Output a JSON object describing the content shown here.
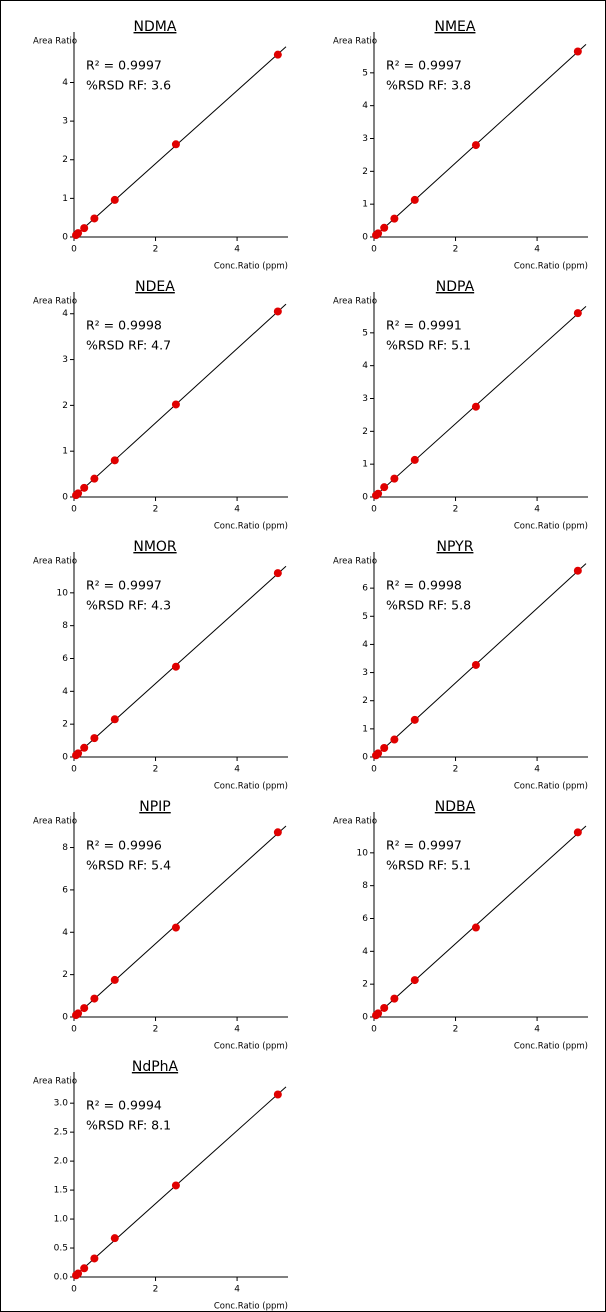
{
  "chart_data": [
    {
      "type": "scatter",
      "title": "NDMA",
      "ylabel": "Area Ratio",
      "xlabel": "Conc.Ratio (ppm)",
      "annotations": [
        "R² = 0.9997",
        "%RSD RF: 3.6"
      ],
      "x": [
        0.05,
        0.1,
        0.25,
        0.5,
        1,
        2.5,
        5
      ],
      "values": [
        0.05,
        0.1,
        0.23,
        0.48,
        0.96,
        2.4,
        4.72
      ],
      "color": "#e00000",
      "xlim": [
        0,
        5.2
      ],
      "xticks": [
        0,
        2,
        4
      ],
      "ylim": [
        0,
        5.1
      ],
      "yticks": [
        0,
        1,
        2,
        3,
        4
      ]
    },
    {
      "type": "scatter",
      "title": "NMEA",
      "ylabel": "Area Ratio",
      "xlabel": "Conc.Ratio (ppm)",
      "annotations": [
        "R² = 0.9997",
        "%RSD RF: 3.8"
      ],
      "x": [
        0.05,
        0.1,
        0.25,
        0.5,
        1,
        2.5,
        5
      ],
      "values": [
        0.06,
        0.11,
        0.28,
        0.56,
        1.13,
        2.8,
        5.65
      ],
      "color": "#e00000",
      "xlim": [
        0,
        5.2
      ],
      "xticks": [
        0,
        2,
        4
      ],
      "ylim": [
        0,
        6.0
      ],
      "yticks": [
        0,
        1,
        2,
        3,
        4,
        5
      ]
    },
    {
      "type": "scatter",
      "title": "NDEA",
      "ylabel": "Area Ratio",
      "xlabel": "Conc.Ratio (ppm)",
      "annotations": [
        "R² = 0.9998",
        "%RSD RF: 4.7"
      ],
      "x": [
        0.05,
        0.1,
        0.25,
        0.5,
        1,
        2.5,
        5
      ],
      "values": [
        0.04,
        0.08,
        0.2,
        0.4,
        0.8,
        2.02,
        4.05
      ],
      "color": "#e00000",
      "xlim": [
        0,
        5.2
      ],
      "xticks": [
        0,
        2,
        4
      ],
      "ylim": [
        0,
        4.3
      ],
      "yticks": [
        0,
        1,
        2,
        3,
        4
      ]
    },
    {
      "type": "scatter",
      "title": "NDPA",
      "ylabel": "Area Ratio",
      "xlabel": "Conc.Ratio (ppm)",
      "annotations": [
        "R² = 0.9991",
        "%RSD RF: 5.1"
      ],
      "x": [
        0.05,
        0.1,
        0.25,
        0.5,
        1,
        2.5,
        5
      ],
      "values": [
        0.05,
        0.1,
        0.3,
        0.56,
        1.13,
        2.75,
        5.6
      ],
      "color": "#e00000",
      "xlim": [
        0,
        5.2
      ],
      "xticks": [
        0,
        2,
        4
      ],
      "ylim": [
        0,
        6.0
      ],
      "yticks": [
        0,
        1,
        2,
        3,
        4,
        5
      ]
    },
    {
      "type": "scatter",
      "title": "NMOR",
      "ylabel": "Area Ratio",
      "xlabel": "Conc.Ratio (ppm)",
      "annotations": [
        "R² = 0.9997",
        "%RSD RF: 4.3"
      ],
      "x": [
        0.05,
        0.1,
        0.25,
        0.5,
        1,
        2.5,
        5
      ],
      "values": [
        0.11,
        0.22,
        0.56,
        1.15,
        2.3,
        5.5,
        11.2
      ],
      "color": "#e00000",
      "xlim": [
        0,
        5.2
      ],
      "xticks": [
        0,
        2,
        4
      ],
      "ylim": [
        0,
        12
      ],
      "yticks": [
        0,
        2,
        4,
        6,
        8,
        10
      ]
    },
    {
      "type": "scatter",
      "title": "NPYR",
      "ylabel": "Area Ratio",
      "xlabel": "Conc.Ratio (ppm)",
      "annotations": [
        "R² = 0.9998",
        "%RSD RF: 5.8"
      ],
      "x": [
        0.05,
        0.1,
        0.25,
        0.5,
        1,
        2.5,
        5
      ],
      "values": [
        0.06,
        0.13,
        0.32,
        0.62,
        1.32,
        3.27,
        6.62
      ],
      "color": "#e00000",
      "xlim": [
        0,
        5.2
      ],
      "xticks": [
        0,
        2,
        4
      ],
      "ylim": [
        0,
        7.0
      ],
      "yticks": [
        0,
        1,
        2,
        3,
        4,
        5,
        6
      ]
    },
    {
      "type": "scatter",
      "title": "NPIP",
      "ylabel": "Area Ratio",
      "xlabel": "Conc.Ratio (ppm)",
      "annotations": [
        "R² = 0.9996",
        "%RSD RF: 5.4"
      ],
      "x": [
        0.05,
        0.1,
        0.25,
        0.5,
        1,
        2.5,
        5
      ],
      "values": [
        0.09,
        0.17,
        0.42,
        0.87,
        1.75,
        4.22,
        8.72
      ],
      "color": "#e00000",
      "xlim": [
        0,
        5.2
      ],
      "xticks": [
        0,
        2,
        4
      ],
      "ylim": [
        0,
        9.3
      ],
      "yticks": [
        0,
        2,
        4,
        6,
        8
      ]
    },
    {
      "type": "scatter",
      "title": "NDBA",
      "ylabel": "Area Ratio",
      "xlabel": "Conc.Ratio (ppm)",
      "annotations": [
        "R² = 0.9997",
        "%RSD RF: 5.1"
      ],
      "x": [
        0.05,
        0.1,
        0.25,
        0.5,
        1,
        2.5,
        5
      ],
      "values": [
        0.11,
        0.22,
        0.55,
        1.12,
        2.25,
        5.45,
        11.25
      ],
      "color": "#e00000",
      "xlim": [
        0,
        5.2
      ],
      "xticks": [
        0,
        2,
        4
      ],
      "ylim": [
        0,
        12
      ],
      "yticks": [
        0,
        2,
        4,
        6,
        8,
        10
      ]
    },
    {
      "type": "scatter",
      "title": "NdPhA",
      "ylabel": "Area Ratio",
      "xlabel": "Conc.Ratio (ppm)",
      "annotations": [
        "R² = 0.9994",
        "%RSD RF: 8.1"
      ],
      "x": [
        0.05,
        0.1,
        0.25,
        0.5,
        1,
        2.5,
        5
      ],
      "values": [
        0.03,
        0.06,
        0.15,
        0.32,
        0.67,
        1.58,
        3.15
      ],
      "color": "#e00000",
      "xlim": [
        0,
        5.2
      ],
      "xticks": [
        0,
        2,
        4
      ],
      "ylim": [
        0,
        3.4
      ],
      "yticks": [
        {
          "value": 0,
          "label": "0.0"
        },
        {
          "value": 0.5,
          "label": "0.5"
        },
        {
          "value": 1,
          "label": "1.0"
        },
        {
          "value": 1.5,
          "label": "1.5"
        },
        {
          "value": 2,
          "label": "2.0"
        },
        {
          "value": 2.5,
          "label": "2.5"
        },
        {
          "value": 3,
          "label": "3.0"
        }
      ]
    }
  ]
}
